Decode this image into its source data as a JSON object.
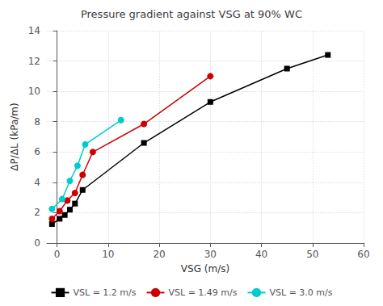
{
  "chart_data": {
    "type": "line",
    "title": "Pressure gradient against VSG at 90% WC",
    "x_label": "VSG (m/s)",
    "y_label": "ΔP/ΔL (kPa/m)",
    "xlim": [
      -2,
      60
    ],
    "ylim": [
      0,
      14
    ],
    "xticks": [
      0,
      10,
      20,
      30,
      40,
      50,
      60
    ],
    "yticks": [
      0,
      2,
      4,
      6,
      8,
      10,
      12,
      14
    ],
    "grid": true,
    "legend": "bottom",
    "series": [
      {
        "name": "VSL = 1.2 m/s",
        "color": "#000000",
        "marker": "square",
        "line_style": "solid",
        "x": [
          -1.0,
          0.5,
          1.5,
          2.5,
          3.5,
          5.0,
          17.0,
          30.0,
          45.0,
          53.0
        ],
        "values": [
          1.25,
          1.6,
          1.85,
          2.2,
          2.6,
          3.5,
          6.6,
          9.3,
          11.5,
          12.4
        ]
      },
      {
        "name": "VSL = 1.49 m/s",
        "color": "#cc0000",
        "marker": "circle",
        "line_style": "solid",
        "x": [
          -1.0,
          0.5,
          2.0,
          3.5,
          5.0,
          7.0,
          17.0,
          30.0
        ],
        "values": [
          1.6,
          2.1,
          2.8,
          3.3,
          4.5,
          6.0,
          7.85,
          11.0
        ]
      },
      {
        "name": "VSL = 3.0 m/s",
        "color": "#00cccc",
        "marker": "circle",
        "line_style": "solid",
        "x": [
          -1.0,
          1.0,
          2.5,
          4.0,
          5.5,
          12.5
        ],
        "values": [
          2.25,
          2.9,
          4.1,
          5.1,
          6.5,
          8.1
        ]
      }
    ]
  }
}
